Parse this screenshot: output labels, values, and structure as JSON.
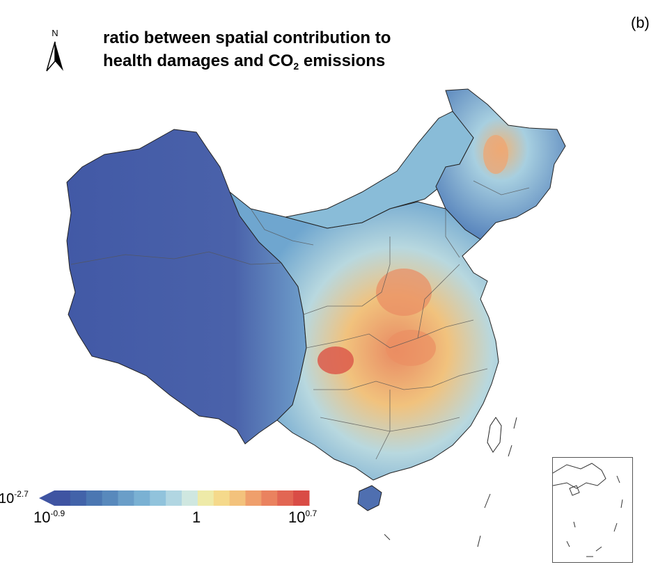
{
  "panel_label": "(b)",
  "north_arrow": {
    "letter": "N",
    "icon": "north-arrow-icon"
  },
  "title": {
    "line1": "ratio between spatial contribution to",
    "line2_prefix": "health damages and CO",
    "line2_subscript": "2",
    "line2_suffix": " emissions"
  },
  "legend": {
    "min_label_base": "10",
    "min_label_exp": "-2.7",
    "tick_left_base": "10",
    "tick_left_exp": "-0.9",
    "tick_mid": "1",
    "tick_right_base": "10",
    "tick_right_exp": "0.7",
    "colors": [
      "#3f54a2",
      "#4263a9",
      "#4b77b2",
      "#5889bc",
      "#6a9ec8",
      "#7ab1d3",
      "#91c3dc",
      "#b1d6e2",
      "#cfe7e0",
      "#eeeaa8",
      "#f5d98b",
      "#f3c27c",
      "#ef9f6c",
      "#ea825f",
      "#e26653",
      "#d94c46"
    ]
  },
  "colors": {
    "low": "#3f54a2",
    "mid_low": "#7ab1d3",
    "neutral": "#eeeaa8",
    "high": "#d94c46"
  }
}
